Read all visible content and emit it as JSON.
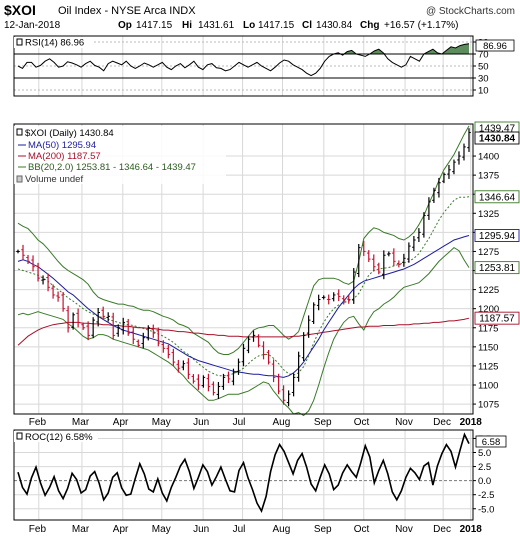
{
  "header": {
    "symbol": "$XOI",
    "name": "Oil Index - NYSE Arca INDX",
    "credit": "@ StockCharts.com",
    "date": "12-Jan-2018",
    "open_label": "Op",
    "open": "1417.15",
    "high_label": "Hi",
    "high": "1431.61",
    "low_label": "Lo",
    "low": "1417.15",
    "close_label": "Cl",
    "close": "1430.84",
    "change_label": "Chg",
    "change": "+16.57 (+1.17%)"
  },
  "rsi": {
    "legend": "RSI(14) 86.96",
    "last_value_label": "86.96",
    "ticks": [
      "90",
      "70",
      "50",
      "30",
      "10"
    ],
    "ylim": [
      0,
      100
    ],
    "overbought": 70,
    "oversold": 30,
    "colors": {
      "line": "#000000",
      "fill": "#5d8c5d"
    },
    "values": [
      50,
      46,
      56,
      56,
      48,
      51,
      58,
      62,
      56,
      48,
      50,
      57,
      55,
      52,
      48,
      54,
      58,
      51,
      48,
      42,
      54,
      58,
      55,
      52,
      58,
      50,
      46,
      50,
      55,
      52,
      48,
      52,
      56,
      48,
      44,
      50,
      54,
      47,
      52,
      58,
      48,
      44,
      52,
      54,
      47,
      46,
      42,
      44,
      50,
      56,
      52,
      48,
      52,
      56,
      50,
      46,
      42,
      48,
      55,
      60,
      58,
      52,
      48,
      44,
      38,
      34,
      38,
      46,
      58,
      66,
      70,
      72,
      68,
      74,
      76,
      70,
      68,
      66,
      70,
      75,
      78,
      72,
      62,
      56,
      52,
      48,
      52,
      66,
      62,
      58,
      70,
      74,
      78,
      72,
      70,
      76,
      82,
      80,
      84,
      86,
      87
    ]
  },
  "price": {
    "legend": {
      "symbol_line": "$XOI (Daily) 1430.84",
      "ma50": "MA(50) 1295.94",
      "ma200": "MA(200) 1187.57",
      "bb": "BB(20,2.0) 1253.81 - 1346.64 - 1439.47",
      "volume": "Volume undef"
    },
    "ticks": [
      "1400",
      "1375",
      "1350",
      "1325",
      "1300",
      "1275",
      "1250",
      "1225",
      "1200",
      "1175",
      "1150",
      "1125",
      "1100",
      "1075"
    ],
    "ylim": [
      1062,
      1442
    ],
    "last_labels": {
      "bb_upper": "1439.47",
      "close": "1430.84",
      "bb_mid": "1346.64",
      "ma50": "1295.94",
      "bb_lower": "1253.81",
      "ma200": "1187.57"
    },
    "colors": {
      "up": "#000000",
      "down": "#c8102e",
      "ma50": "#1c1c9c",
      "ma200": "#a8102a",
      "bb": "#3b7a2a"
    }
  },
  "roc": {
    "legend": "ROC(12) 6.58%",
    "last_value_label": "6.58",
    "ticks": [
      "7.5",
      "5.0",
      "2.5",
      "0.0",
      "-2.5",
      "-5.0"
    ],
    "ylim": [
      -7,
      9
    ],
    "values": [
      1.5,
      -1.2,
      -2.4,
      0.5,
      2.4,
      -0.4,
      -2.6,
      -1.2,
      0.7,
      -1.8,
      -3.2,
      -1.4,
      1.3,
      0.2,
      -2.2,
      -1.6,
      0.8,
      1.6,
      -0.5,
      -3.4,
      -2.2,
      0.6,
      1.4,
      -1.3,
      -2.6,
      -2.4,
      0.4,
      3.0,
      1.2,
      -1.5,
      -2.0,
      0.3,
      -2.2,
      -3.6,
      -1.2,
      0.6,
      2.6,
      3.8,
      1.6,
      -1.4,
      0.6,
      2.8,
      1.6,
      -0.8,
      0.7,
      2.4,
      0.2,
      -1.8,
      -2.0,
      1.8,
      3.2,
      0.5,
      -1.6,
      -4.0,
      -5.4,
      -2.8,
      1.6,
      4.6,
      6.4,
      5.2,
      3.2,
      1.2,
      3.6,
      4.8,
      2.4,
      -0.6,
      -1.8,
      0.6,
      2.8,
      1.2,
      -1.6,
      -0.8,
      1.4,
      2.8,
      1.6,
      0.6,
      3.2,
      6.2,
      4.2,
      -0.4,
      1.8,
      3.6,
      1.2,
      -2.0,
      -3.4,
      -1.8,
      0.6,
      2.2,
      1.4,
      0.2,
      2.6,
      3.2,
      -0.8,
      2.6,
      4.8,
      6.4,
      5.2,
      2.4,
      5.4,
      8.2,
      6.58
    ]
  },
  "xaxis": {
    "months": [
      "Feb",
      "Mar",
      "Apr",
      "May",
      "Jun",
      "Jul",
      "Aug",
      "Sep",
      "Oct",
      "Nov",
      "Dec",
      "2018"
    ]
  },
  "chart_data": {
    "type": "line",
    "title": "$XOI Oil Index - NYSE Arca INDX",
    "x_range": [
      "2017-01-09",
      "2018-01-12"
    ],
    "x_label_months": [
      "Feb",
      "Mar",
      "Apr",
      "May",
      "Jun",
      "Jul",
      "Aug",
      "Sep",
      "Oct",
      "Nov",
      "Dec",
      "2018"
    ],
    "sample_interval": "2.5 trading days",
    "series": [
      {
        "name": "$XOI (Daily)",
        "values": [
          1275,
          1270,
          1262,
          1255,
          1240,
          1238,
          1228,
          1218,
          1215,
          1200,
          1175,
          1192,
          1182,
          1175,
          1165,
          1185,
          1195,
          1190,
          1190,
          1165,
          1175,
          1182,
          1168,
          1160,
          1152,
          1162,
          1175,
          1168,
          1155,
          1148,
          1140,
          1130,
          1122,
          1128,
          1114,
          1105,
          1100,
          1110,
          1098,
          1090,
          1098,
          1110,
          1108,
          1116,
          1130,
          1148,
          1160,
          1165,
          1152,
          1140,
          1130,
          1110,
          1092,
          1080,
          1088,
          1110,
          1138,
          1165,
          1185,
          1205,
          1212,
          1215,
          1212,
          1218,
          1216,
          1210,
          1212,
          1248,
          1280,
          1275,
          1265,
          1255,
          1248,
          1270,
          1272,
          1262,
          1258,
          1266,
          1282,
          1290,
          1300,
          1322,
          1340,
          1355,
          1365,
          1376,
          1382,
          1392,
          1400,
          1412,
          1430.84
        ]
      },
      {
        "name": "MA(50)",
        "values": [
          1262,
          1264,
          1262,
          1258,
          1255,
          1250,
          1245,
          1240,
          1234,
          1228,
          1222,
          1218,
          1212,
          1206,
          1200,
          1195,
          1190,
          1186,
          1182,
          1178,
          1175,
          1172,
          1170,
          1168,
          1166,
          1164,
          1162,
          1160,
          1158,
          1156,
          1154,
          1150,
          1146,
          1142,
          1138,
          1135,
          1132,
          1130,
          1128,
          1126,
          1124,
          1122,
          1120,
          1118,
          1117,
          1116,
          1115,
          1114,
          1114,
          1113,
          1112,
          1112,
          1111,
          1110,
          1112,
          1116,
          1122,
          1130,
          1140,
          1150,
          1160,
          1172,
          1182,
          1192,
          1202,
          1210,
          1218,
          1226,
          1232,
          1236,
          1238,
          1240,
          1242,
          1244,
          1246,
          1248,
          1250,
          1252,
          1255,
          1258,
          1262,
          1266,
          1270,
          1274,
          1278,
          1282,
          1286,
          1290,
          1292,
          1294,
          1295.94
        ]
      },
      {
        "name": "MA(200)",
        "values": [
          1152,
          1158,
          1164,
          1168,
          1172,
          1175,
          1177,
          1179,
          1180,
          1181,
          1182,
          1182,
          1182,
          1181,
          1181,
          1180,
          1180,
          1179,
          1179,
          1178,
          1178,
          1177,
          1177,
          1176,
          1175,
          1175,
          1174,
          1174,
          1173,
          1172,
          1172,
          1171,
          1170,
          1170,
          1169,
          1168,
          1168,
          1167,
          1166,
          1166,
          1165,
          1165,
          1164,
          1164,
          1164,
          1163,
          1163,
          1163,
          1163,
          1163,
          1163,
          1163,
          1163,
          1163,
          1163,
          1164,
          1164,
          1165,
          1166,
          1167,
          1168,
          1169,
          1170,
          1171,
          1172,
          1173,
          1174,
          1175,
          1176,
          1176,
          1177,
          1177,
          1177,
          1178,
          1178,
          1178,
          1179,
          1179,
          1179,
          1180,
          1180,
          1181,
          1181,
          1182,
          1182,
          1183,
          1184,
          1184,
          1185,
          1186,
          1187.57
        ]
      },
      {
        "name": "BB(20,2.0) upper",
        "values": [
          1312,
          1308,
          1305,
          1298,
          1290,
          1285,
          1278,
          1270,
          1262,
          1255,
          1250,
          1246,
          1242,
          1238,
          1232,
          1222,
          1215,
          1212,
          1210,
          1208,
          1206,
          1206,
          1204,
          1203,
          1200,
          1198,
          1198,
          1196,
          1193,
          1190,
          1188,
          1185,
          1180,
          1178,
          1175,
          1168,
          1164,
          1160,
          1156,
          1148,
          1142,
          1140,
          1140,
          1143,
          1148,
          1156,
          1164,
          1172,
          1175,
          1176,
          1178,
          1178,
          1172,
          1165,
          1160,
          1164,
          1170,
          1190,
          1210,
          1230,
          1238,
          1240,
          1240,
          1240,
          1238,
          1234,
          1232,
          1236,
          1262,
          1292,
          1300,
          1306,
          1304,
          1300,
          1298,
          1296,
          1292,
          1290,
          1294,
          1300,
          1310,
          1322,
          1338,
          1352,
          1368,
          1382,
          1392,
          1402,
          1415,
          1428,
          1439.47
        ]
      },
      {
        "name": "BB(20,2.0) middle",
        "values": [
          1252,
          1250,
          1248,
          1246,
          1244,
          1240,
          1236,
          1230,
          1225,
          1220,
          1214,
          1210,
          1205,
          1200,
          1196,
          1193,
          1190,
          1188,
          1186,
          1184,
          1182,
          1180,
          1179,
          1178,
          1176,
          1174,
          1172,
          1170,
          1167,
          1164,
          1160,
          1156,
          1150,
          1144,
          1140,
          1134,
          1128,
          1123,
          1118,
          1115,
          1112,
          1112,
          1113,
          1115,
          1118,
          1122,
          1128,
          1134,
          1138,
          1140,
          1140,
          1135,
          1128,
          1120,
          1115,
          1113,
          1116,
          1124,
          1138,
          1155,
          1170,
          1182,
          1192,
          1200,
          1205,
          1208,
          1210,
          1213,
          1220,
          1232,
          1244,
          1250,
          1252,
          1253,
          1254,
          1256,
          1258,
          1260,
          1262,
          1266,
          1272,
          1282,
          1292,
          1304,
          1316,
          1326,
          1334,
          1342,
          1346,
          1346,
          1346.64
        ]
      },
      {
        "name": "BB(20,2.0) lower",
        "values": [
          1192,
          1194,
          1192,
          1194,
          1196,
          1194,
          1192,
          1190,
          1188,
          1186,
          1180,
          1176,
          1170,
          1164,
          1160,
          1162,
          1166,
          1166,
          1164,
          1160,
          1158,
          1156,
          1154,
          1152,
          1150,
          1148,
          1146,
          1142,
          1138,
          1134,
          1130,
          1125,
          1118,
          1112,
          1104,
          1098,
          1092,
          1086,
          1080,
          1080,
          1082,
          1085,
          1088,
          1088,
          1088,
          1090,
          1092,
          1096,
          1100,
          1104,
          1102,
          1092,
          1084,
          1076,
          1070,
          1062,
          1064,
          1060,
          1066,
          1080,
          1100,
          1122,
          1142,
          1160,
          1172,
          1182,
          1188,
          1190,
          1180,
          1172,
          1186,
          1196,
          1200,
          1206,
          1210,
          1215,
          1222,
          1228,
          1230,
          1232,
          1234,
          1240,
          1246,
          1254,
          1262,
          1268,
          1274,
          1280,
          1276,
          1264,
          1253.81
        ]
      }
    ],
    "indicators": {
      "rsi14_last": 86.96,
      "roc12_last": 6.58
    },
    "ohlc_last": {
      "open": 1417.15,
      "high": 1431.61,
      "low": 1417.15,
      "close": 1430.84,
      "change": 16.57,
      "change_pct": 1.17
    }
  }
}
